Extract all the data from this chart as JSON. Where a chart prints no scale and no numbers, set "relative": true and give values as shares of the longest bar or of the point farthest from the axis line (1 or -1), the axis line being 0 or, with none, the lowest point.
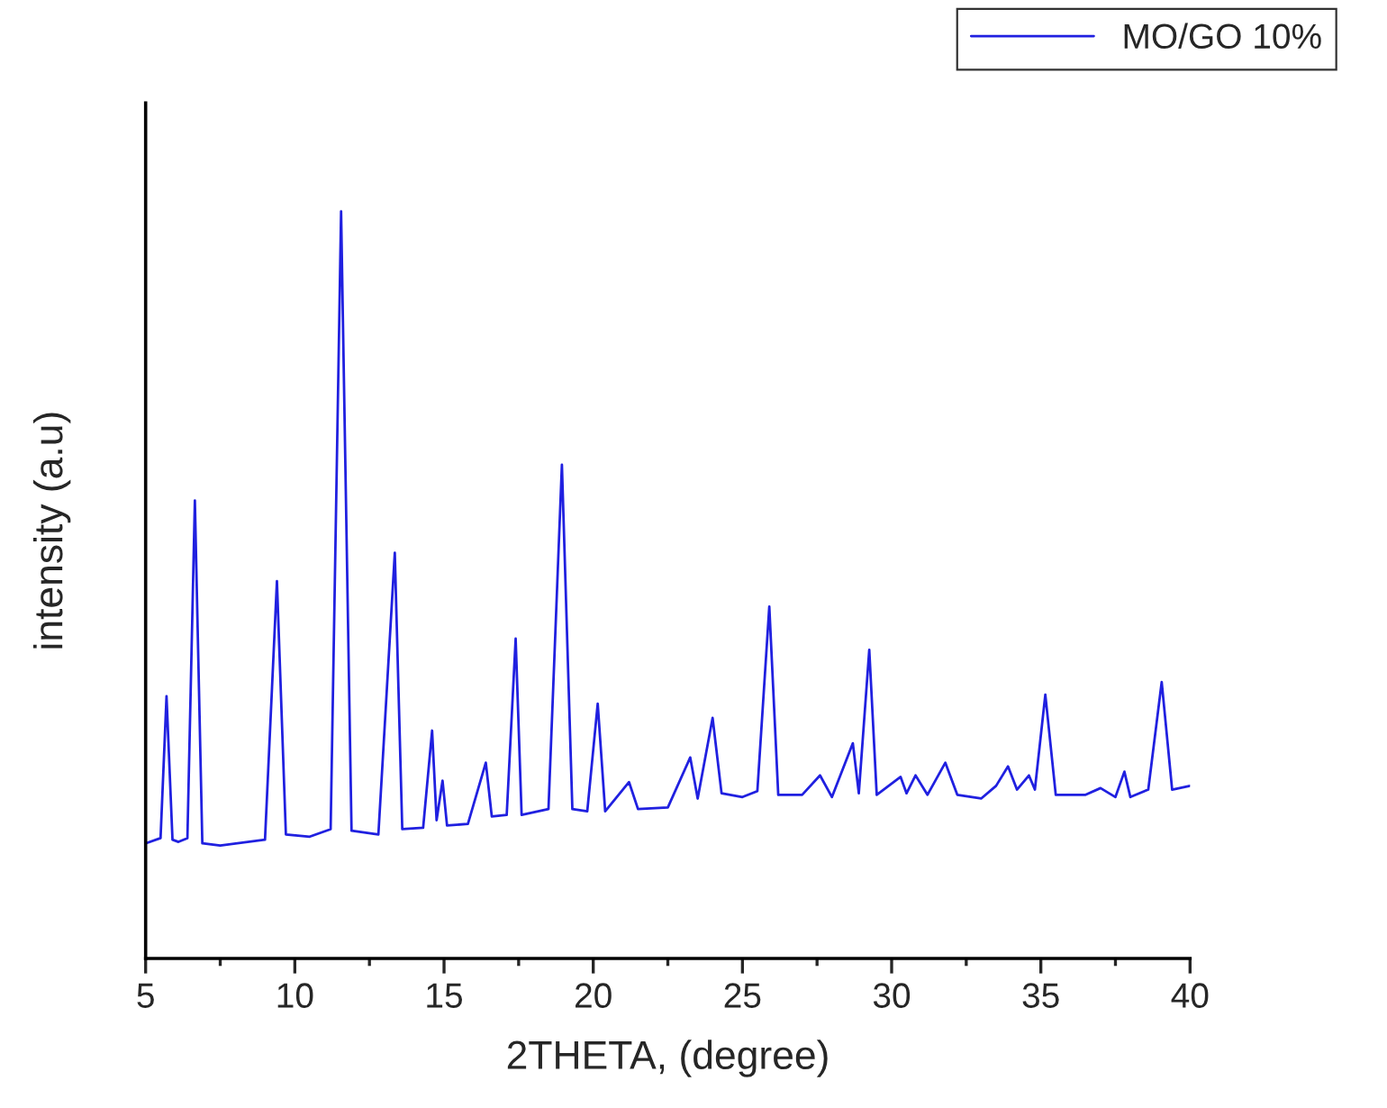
{
  "chart_data": {
    "type": "line",
    "relative": true,
    "xlabel": "2THETA, (degree)",
    "ylabel": "intensity (a.u)",
    "xlim": [
      5,
      40
    ],
    "xticks": [
      5,
      10,
      15,
      20,
      25,
      30,
      35,
      40
    ],
    "grid": false,
    "legend": "top right",
    "marker": "none",
    "line_style": "solid",
    "series": [
      {
        "name": "MO/GO 10%",
        "color": "#2020e0",
        "x": [
          5,
          5.5,
          5.7,
          5.9,
          6.1,
          6.4,
          6.65,
          6.9,
          7.5,
          9.0,
          9.4,
          9.7,
          10.5,
          11.2,
          11.55,
          11.9,
          12.8,
          13.35,
          13.6,
          14.3,
          14.6,
          14.75,
          14.95,
          15.1,
          15.8,
          16.4,
          16.6,
          17.1,
          17.4,
          17.6,
          18.5,
          18.95,
          19.3,
          19.8,
          20.15,
          20.4,
          21.2,
          21.5,
          22.5,
          23.25,
          23.5,
          24.0,
          24.3,
          25.0,
          25.5,
          25.9,
          26.2,
          27.0,
          27.6,
          28.0,
          28.7,
          28.9,
          29.25,
          29.5,
          30.3,
          30.5,
          30.8,
          31.2,
          31.8,
          32.2,
          33.0,
          33.5,
          33.9,
          34.2,
          34.6,
          34.8,
          35.15,
          35.5,
          36.5,
          37.0,
          37.5,
          37.8,
          38.0,
          38.6,
          39.05,
          39.4,
          40.0
        ],
        "values": [
          0.154,
          0.161,
          0.351,
          0.159,
          0.156,
          0.161,
          0.613,
          0.154,
          0.151,
          0.159,
          0.505,
          0.166,
          0.163,
          0.173,
          1,
          0.171,
          0.166,
          0.543,
          0.173,
          0.175,
          0.305,
          0.185,
          0.238,
          0.178,
          0.18,
          0.262,
          0.19,
          0.192,
          0.428,
          0.192,
          0.2,
          0.661,
          0.2,
          0.197,
          0.341,
          0.197,
          0.236,
          0.2,
          0.202,
          0.269,
          0.214,
          0.322,
          0.221,
          0.216,
          0.224,
          0.471,
          0.219,
          0.219,
          0.245,
          0.216,
          0.288,
          0.221,
          0.413,
          0.219,
          0.243,
          0.221,
          0.245,
          0.219,
          0.262,
          0.219,
          0.214,
          0.231,
          0.257,
          0.226,
          0.245,
          0.226,
          0.353,
          0.219,
          0.219,
          0.228,
          0.216,
          0.25,
          0.216,
          0.226,
          0.37,
          0.226,
          0.231
        ]
      }
    ]
  }
}
